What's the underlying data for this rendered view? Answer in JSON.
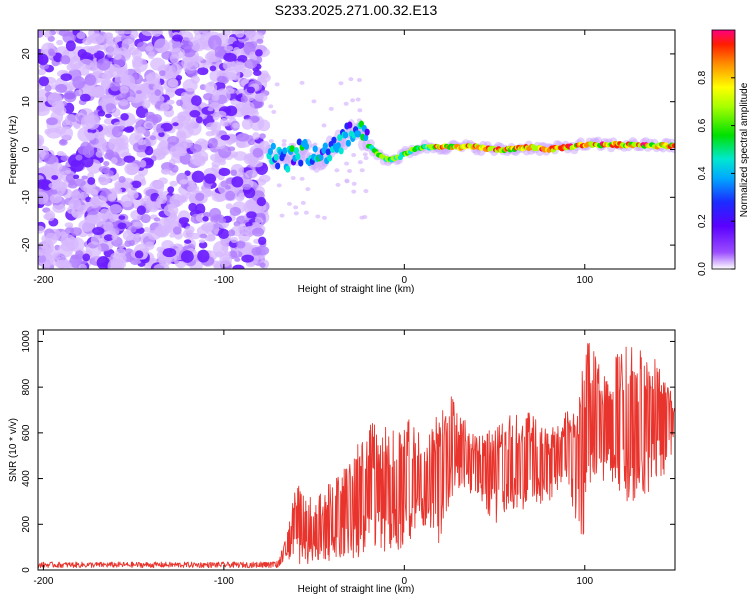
{
  "title": "S233.2025.271.00.32.E13",
  "chart_data": [
    {
      "type": "heatmap",
      "name": "spectrogram",
      "xlabel": "Height of straight line (km)",
      "ylabel": "Frequency (Hz)",
      "xlim": [
        -203,
        150
      ],
      "ylim": [
        -25,
        25
      ],
      "xticks": [
        -200,
        -100,
        0,
        100
      ],
      "yticks": [
        -20,
        -10,
        0,
        10,
        20
      ],
      "noise_region_x": [
        -203,
        -75
      ],
      "signal_ridge": {
        "x": [
          -75,
          -70,
          -65,
          -60,
          -55,
          -50,
          -45,
          -40,
          -35,
          -30,
          -27,
          -24,
          -20,
          -15,
          -10,
          -5,
          0,
          5,
          10,
          20,
          30,
          40,
          50,
          60,
          70,
          80,
          90,
          100,
          110,
          120,
          130,
          140,
          150
        ],
        "freq": [
          -2,
          -1,
          -2,
          -1,
          0,
          -2,
          -1,
          0,
          2,
          3,
          4,
          3,
          1,
          -1,
          -2,
          -2,
          -1,
          0,
          0.5,
          0.5,
          0.5,
          0.5,
          0,
          0,
          0.5,
          0,
          0.5,
          1,
          1,
          1,
          1,
          0.8,
          0.8
        ]
      }
    },
    {
      "type": "colorbar",
      "label": "Normalized spectral amplitude",
      "range": [
        0,
        1
      ],
      "ticks": [
        "0.0",
        "0.2",
        "0.4",
        "0.6",
        "0.8"
      ]
    },
    {
      "type": "line",
      "name": "snr",
      "xlabel": "Height of straight line (km)",
      "ylabel": "SNR (10 * v/v)",
      "xlim": [
        -203,
        150
      ],
      "ylim": [
        0,
        1050
      ],
      "xticks": [
        -200,
        -100,
        0,
        100
      ],
      "yticks": [
        0,
        200,
        400,
        600,
        800,
        1000
      ],
      "color": "#e8342c",
      "envelope": {
        "x": [
          -203,
          -80,
          -70,
          -65,
          -60,
          -50,
          -40,
          -30,
          -20,
          -10,
          0,
          10,
          15,
          20,
          25,
          30,
          40,
          50,
          60,
          70,
          80,
          90,
          95,
          100,
          105,
          110,
          120,
          130,
          140,
          145,
          150
        ],
        "lo": [
          5,
          10,
          10,
          50,
          20,
          30,
          40,
          50,
          60,
          80,
          90,
          200,
          150,
          100,
          300,
          350,
          330,
          200,
          250,
          260,
          300,
          380,
          200,
          120,
          400,
          350,
          300,
          220,
          400,
          350,
          600
        ],
        "hi": [
          30,
          35,
          40,
          150,
          400,
          300,
          400,
          500,
          650,
          630,
          680,
          600,
          650,
          700,
          820,
          700,
          580,
          640,
          690,
          700,
          600,
          700,
          680,
          1000,
          1040,
          900,
          980,
          1000,
          920,
          880,
          720
        ]
      }
    }
  ]
}
